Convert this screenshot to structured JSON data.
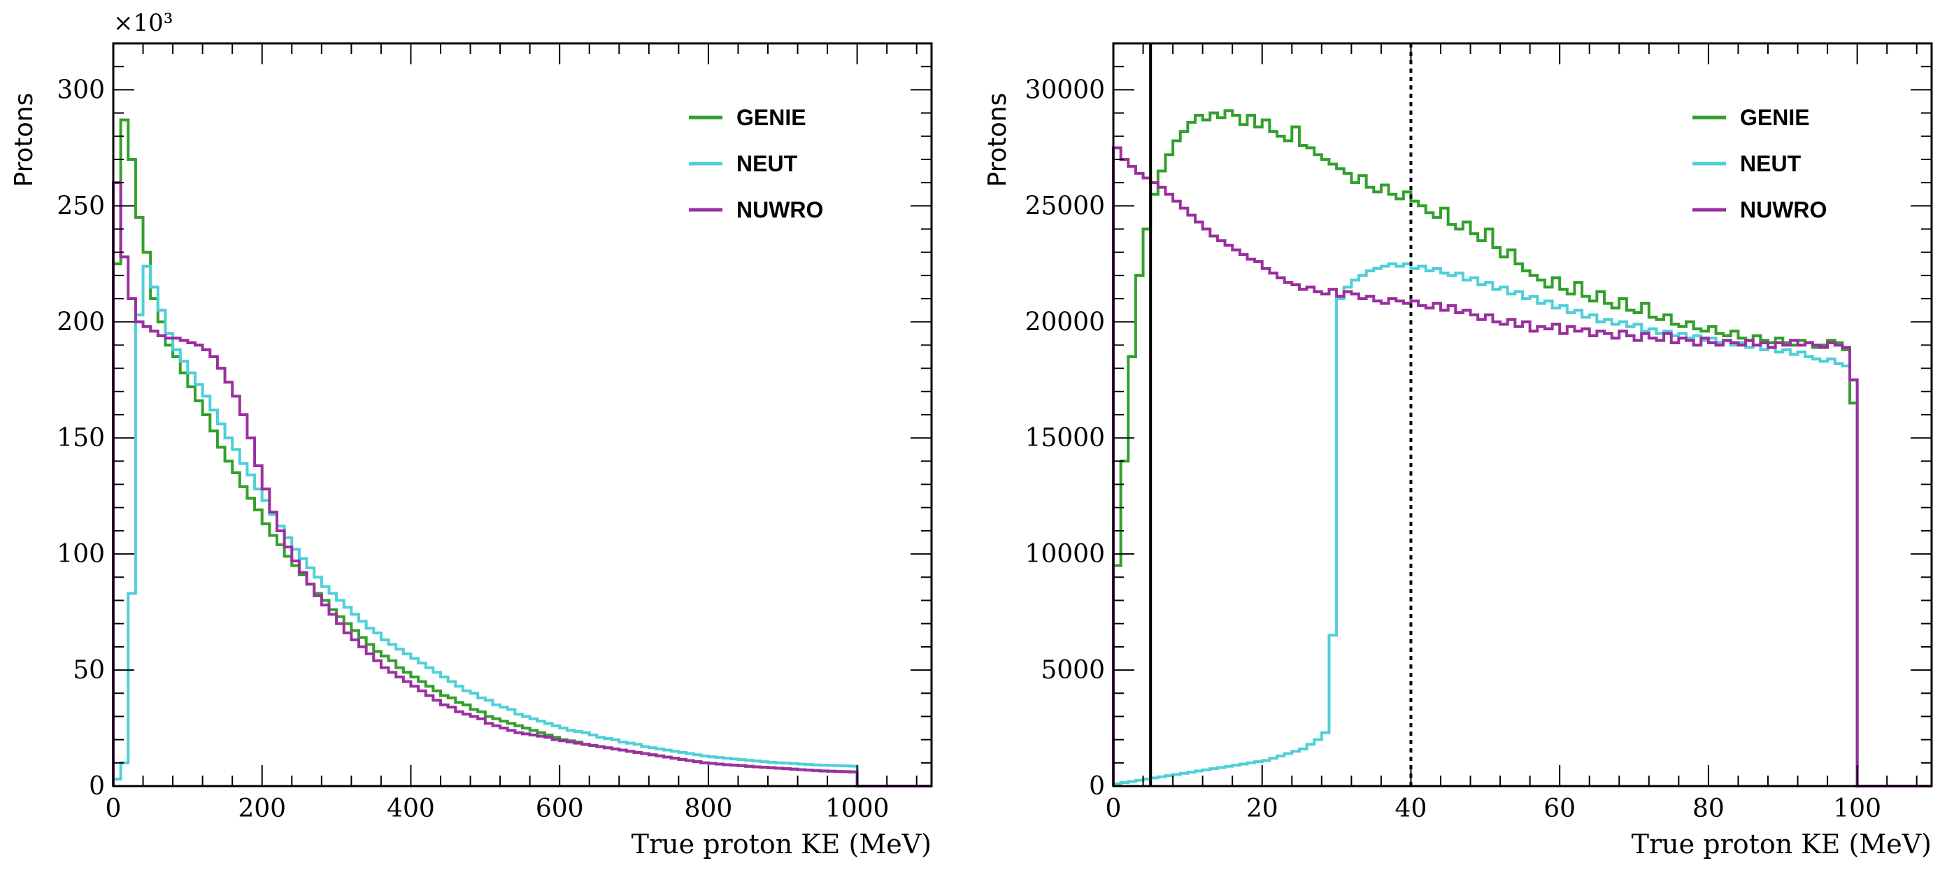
{
  "chart_data": [
    {
      "type": "line",
      "style": "histogram-step",
      "title": "",
      "xlabel": "True proton KE (MeV)",
      "ylabel": "Protons",
      "y_multiplier_label": "×10³",
      "xlim": [
        0,
        1100
      ],
      "ylim": [
        0,
        320
      ],
      "xticks": [
        0,
        200,
        400,
        600,
        800,
        1000
      ],
      "xtick_labels": [
        "0",
        "200",
        "400",
        "600",
        "800",
        "1000"
      ],
      "yticks": [
        0,
        50,
        100,
        150,
        200,
        250,
        300
      ],
      "ytick_labels": [
        "0",
        "50",
        "100",
        "150",
        "200",
        "250",
        "300"
      ],
      "bin_width": 10,
      "bin_start": 0,
      "legend": {
        "position": "top-right",
        "entries": [
          "GENIE",
          "NEUT",
          "NUWRO"
        ]
      },
      "series": [
        {
          "name": "GENIE",
          "color": "#33a02c",
          "values": [
            225,
            287,
            270,
            245,
            230,
            210,
            200,
            190,
            185,
            178,
            172,
            166,
            160,
            153,
            146,
            140,
            135,
            129,
            124,
            119,
            113,
            108,
            104,
            99,
            95,
            91,
            87,
            83,
            80,
            76,
            73,
            70,
            67,
            64,
            61,
            58,
            56,
            54,
            51,
            49,
            47,
            45,
            43,
            41,
            39,
            38,
            36,
            35,
            33,
            32,
            30,
            29,
            28,
            27,
            26,
            25,
            24,
            23,
            22,
            21,
            20,
            19.5,
            19,
            18,
            17.5,
            17,
            16.5,
            16,
            15.5,
            15,
            14.5,
            14,
            13.5,
            13,
            12.5,
            12,
            11.5,
            11,
            10.5,
            10,
            9.8,
            9.5,
            9.2,
            9,
            8.8,
            8.5,
            8.3,
            8.1,
            7.9,
            7.7,
            7.5,
            7.3,
            7.1,
            6.9,
            6.7,
            6.5,
            6.4,
            6.3,
            6.2,
            6.1,
            0,
            0,
            0,
            0,
            0,
            0,
            0,
            0,
            0,
            0
          ]
        },
        {
          "name": "NEUT",
          "color": "#4fd0d8",
          "values": [
            3,
            10,
            83,
            203,
            224,
            215,
            205,
            195,
            188,
            183,
            178,
            173,
            168,
            162,
            156,
            150,
            145,
            139,
            134,
            128,
            123,
            117,
            112,
            107,
            102,
            98,
            94,
            90,
            86,
            83,
            80,
            77,
            74,
            71,
            68,
            66,
            63,
            61,
            59,
            57,
            55,
            53,
            51,
            49,
            47,
            45,
            43,
            41,
            40,
            38,
            37,
            35,
            34,
            33,
            31,
            30,
            29,
            28,
            27,
            26,
            25,
            24,
            23.5,
            23,
            22,
            21,
            20.5,
            20,
            19,
            18.5,
            18,
            17,
            16.5,
            16,
            15.5,
            15,
            14.5,
            14,
            13.5,
            13,
            12.6,
            12.3,
            12,
            11.7,
            11.4,
            11.1,
            10.8,
            10.5,
            10.3,
            10,
            9.9,
            9.7,
            9.5,
            9.3,
            9.1,
            9,
            8.9,
            8.8,
            8.7,
            8.6,
            0,
            0,
            0,
            0,
            0,
            0,
            0,
            0,
            0,
            0
          ]
        },
        {
          "name": "NUWRO",
          "color": "#9b30a0",
          "values": [
            260,
            228,
            210,
            200,
            198,
            196,
            194,
            193,
            193,
            192,
            191,
            190,
            188,
            185,
            180,
            174,
            168,
            160,
            150,
            138,
            128,
            118,
            110,
            103,
            97,
            92,
            87,
            82,
            78,
            74,
            70,
            66,
            63,
            60,
            57,
            54,
            51,
            49,
            47,
            45,
            43,
            41,
            39,
            37,
            35,
            34,
            32,
            31,
            30,
            29,
            27,
            26,
            25,
            24,
            23,
            22.5,
            22,
            21.5,
            21,
            20,
            19.5,
            19,
            18.5,
            18,
            17.5,
            17,
            16.5,
            16,
            15.5,
            15,
            14.5,
            14,
            13.5,
            13,
            12.5,
            12,
            11.5,
            11,
            10.5,
            10,
            9.8,
            9.5,
            9.2,
            9,
            8.8,
            8.5,
            8.3,
            8.1,
            7.9,
            7.7,
            7.5,
            7.3,
            7.1,
            6.9,
            6.7,
            6.5,
            6.4,
            6.3,
            6.2,
            6.1,
            0,
            0,
            0,
            0,
            0,
            0,
            0,
            0,
            0,
            0
          ]
        }
      ]
    },
    {
      "type": "line",
      "style": "histogram-step",
      "title": "",
      "xlabel": "True proton KE (MeV)",
      "ylabel": "Protons",
      "xlim": [
        0,
        110
      ],
      "ylim": [
        0,
        32000
      ],
      "xticks": [
        0,
        20,
        40,
        60,
        80,
        100
      ],
      "xtick_labels": [
        "0",
        "20",
        "40",
        "60",
        "80",
        "100"
      ],
      "yticks": [
        0,
        5000,
        10000,
        15000,
        20000,
        25000,
        30000
      ],
      "ytick_labels": [
        "0",
        "5000",
        "10000",
        "15000",
        "20000",
        "25000",
        "30000"
      ],
      "bin_width": 1,
      "bin_start": 0,
      "vertical_lines": [
        {
          "x": 5,
          "style": "solid"
        },
        {
          "x": 40,
          "style": "dotted"
        }
      ],
      "legend": {
        "position": "top-right",
        "entries": [
          "GENIE",
          "NEUT",
          "NUWRO"
        ]
      },
      "series": [
        {
          "name": "GENIE",
          "color": "#33a02c",
          "values": [
            9500,
            14000,
            18500,
            22000,
            24000,
            25500,
            26500,
            27200,
            27800,
            28200,
            28600,
            28900,
            28700,
            29000,
            28800,
            29100,
            28900,
            28500,
            28900,
            28400,
            28700,
            28200,
            28000,
            27800,
            28400,
            27600,
            27500,
            27200,
            27000,
            26800,
            26600,
            26400,
            26000,
            26300,
            25800,
            25600,
            25900,
            25500,
            25300,
            25600,
            25200,
            25000,
            24700,
            24500,
            24900,
            24200,
            24000,
            24300,
            23800,
            23500,
            24000,
            23200,
            22800,
            23100,
            22500,
            22200,
            22000,
            21800,
            21500,
            21900,
            21400,
            21200,
            21700,
            21100,
            20900,
            21300,
            20800,
            20600,
            21000,
            20500,
            20400,
            20800,
            20200,
            20100,
            20300,
            19900,
            19800,
            20000,
            19700,
            19600,
            19800,
            19500,
            19400,
            19600,
            19300,
            19200,
            19400,
            19200,
            19100,
            19300,
            19100,
            19000,
            19200,
            19100,
            18900,
            19000,
            19200,
            19100,
            18800,
            16500,
            0,
            0,
            0,
            0,
            0,
            0,
            0,
            0,
            0,
            0
          ]
        },
        {
          "name": "NEUT",
          "color": "#4fd0d8",
          "values": [
            100,
            150,
            200,
            250,
            300,
            350,
            400,
            450,
            500,
            550,
            600,
            650,
            700,
            750,
            800,
            850,
            900,
            950,
            1000,
            1050,
            1100,
            1200,
            1300,
            1400,
            1500,
            1600,
            1800,
            2000,
            2300,
            6500,
            21000,
            21500,
            21800,
            22000,
            22200,
            22300,
            22400,
            22500,
            22400,
            22500,
            22300,
            22400,
            22200,
            22300,
            22100,
            22000,
            22100,
            21800,
            21900,
            21600,
            21700,
            21400,
            21500,
            21200,
            21300,
            21000,
            21100,
            20800,
            20900,
            20600,
            20700,
            20400,
            20500,
            20200,
            20300,
            20000,
            20100,
            19900,
            20000,
            19800,
            19900,
            19600,
            19700,
            19500,
            19600,
            19400,
            19500,
            19300,
            19400,
            19200,
            19300,
            19100,
            19200,
            19000,
            19100,
            18900,
            19000,
            18800,
            18900,
            18700,
            18800,
            18600,
            18700,
            18500,
            18400,
            18300,
            18400,
            18200,
            18100,
            17500,
            0,
            0,
            0,
            0,
            0,
            0,
            0,
            0,
            0,
            0
          ]
        },
        {
          "name": "NUWRO",
          "color": "#9b30a0",
          "values": [
            27500,
            27000,
            26700,
            26400,
            26200,
            26000,
            25800,
            25500,
            25200,
            24900,
            24600,
            24300,
            24000,
            23700,
            23500,
            23300,
            23100,
            22900,
            22700,
            22600,
            22300,
            22100,
            21900,
            21700,
            21600,
            21400,
            21500,
            21300,
            21200,
            21400,
            21100,
            21300,
            21200,
            21000,
            21100,
            20900,
            20800,
            21000,
            20900,
            20800,
            20900,
            20700,
            20600,
            20800,
            20500,
            20700,
            20400,
            20500,
            20300,
            20100,
            20300,
            20000,
            19900,
            20100,
            19800,
            20000,
            19600,
            19800,
            19700,
            19900,
            19500,
            19800,
            19600,
            19700,
            19400,
            19600,
            19500,
            19300,
            19600,
            19400,
            19200,
            19500,
            19300,
            19200,
            19500,
            19100,
            19300,
            19200,
            19000,
            19300,
            19100,
            19000,
            19200,
            19100,
            19000,
            19200,
            19000,
            19100,
            18900,
            19100,
            19000,
            19200,
            19000,
            19100,
            19000,
            18900,
            19100,
            19000,
            18900,
            17500,
            0,
            0,
            0,
            0,
            0,
            0,
            0,
            0,
            0,
            0
          ]
        }
      ]
    }
  ]
}
